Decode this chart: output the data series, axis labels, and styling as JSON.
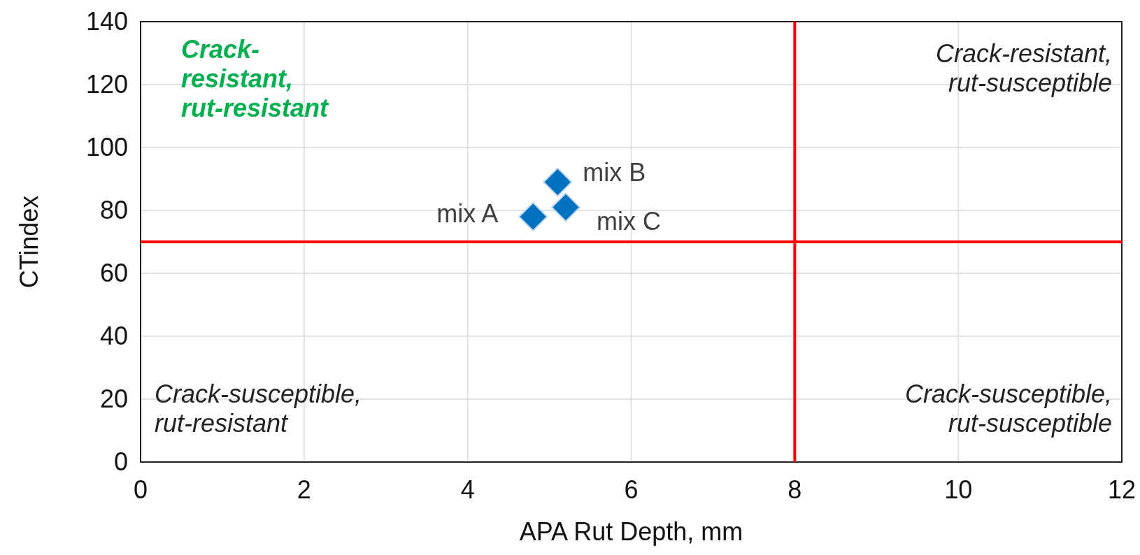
{
  "chart_data": {
    "type": "scatter",
    "xlabel": "APA Rut Depth, mm",
    "ylabel": "CTindex",
    "xlim": [
      0,
      12
    ],
    "xticks": [
      0,
      2,
      4,
      6,
      8,
      10,
      12
    ],
    "ylim": [
      0,
      140
    ],
    "yticks": [
      0,
      20,
      40,
      60,
      80,
      100,
      120,
      140
    ],
    "grid": true,
    "marker": "diamond",
    "series": [
      {
        "color": "#0070c0",
        "x": [
          4.8,
          5.1,
          5.2
        ],
        "values": [
          78,
          89,
          81
        ]
      }
    ],
    "ref_lines": [
      {
        "axis": "x",
        "value": 8,
        "color": "#ff0000"
      },
      {
        "axis": "y",
        "value": 70,
        "color": "#ff0000"
      }
    ],
    "annotations": [
      {
        "text": "mix A",
        "x": 4.8,
        "y": 78
      },
      {
        "text": "mix B",
        "x": 5.1,
        "y": 89
      },
      {
        "text": "mix C",
        "x": 5.2,
        "y": 81
      },
      "Crack-\nresistant,\nrut-resistant",
      "Crack-resistant,\nrut-susceptible",
      "Crack-susceptible,\nrut-resistant",
      "Crack-susceptible,\nrut-susceptible"
    ]
  }
}
